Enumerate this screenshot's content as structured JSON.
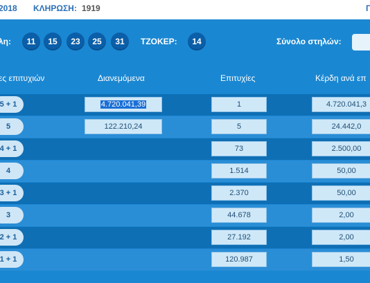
{
  "topbar": {
    "year_fragment": "2018",
    "draw_label": "ΚΛΗΡΩΣΗ:",
    "draw_number": "1919",
    "right_fragment": "Γ"
  },
  "numbers_row": {
    "label": "λη:",
    "balls": [
      "11",
      "15",
      "23",
      "25",
      "31"
    ],
    "joker_label": "ΤΖΟΚΕΡ:",
    "joker": "14",
    "columns_label": "Σύνολο στηλών:"
  },
  "table": {
    "headers": {
      "category": "ες επιτυχιών",
      "distributed": "Διανεμόμενα",
      "winners": "Επιτυχίες",
      "prize": "Κέρδη ανά επ"
    },
    "rows": [
      {
        "category": "5 + 1",
        "distributed": "4.720.041,39",
        "winners": "1",
        "prize": "4.720.041,3"
      },
      {
        "category": "5",
        "distributed": "122.210,24",
        "winners": "5",
        "prize": "24.442,0"
      },
      {
        "category": "4 + 1",
        "distributed": "",
        "winners": "73",
        "prize": "2.500,00"
      },
      {
        "category": "4",
        "distributed": "",
        "winners": "1.514",
        "prize": "50,00"
      },
      {
        "category": "3 + 1",
        "distributed": "",
        "winners": "2.370",
        "prize": "50,00"
      },
      {
        "category": "3",
        "distributed": "",
        "winners": "44.678",
        "prize": "2,00"
      },
      {
        "category": "2 + 1",
        "distributed": "",
        "winners": "27.192",
        "prize": "2,00"
      },
      {
        "category": "1 + 1",
        "distributed": "",
        "winners": "120.987",
        "prize": "1,50"
      }
    ]
  },
  "colors": {
    "header_blue": "#1a87d2",
    "row_dark": "#0f6fb5",
    "row_light": "#2a8ed6",
    "ball_blue": "#0b5ea8",
    "cell_bg": "#cfe8f8",
    "selection": "#1a6fd6"
  }
}
